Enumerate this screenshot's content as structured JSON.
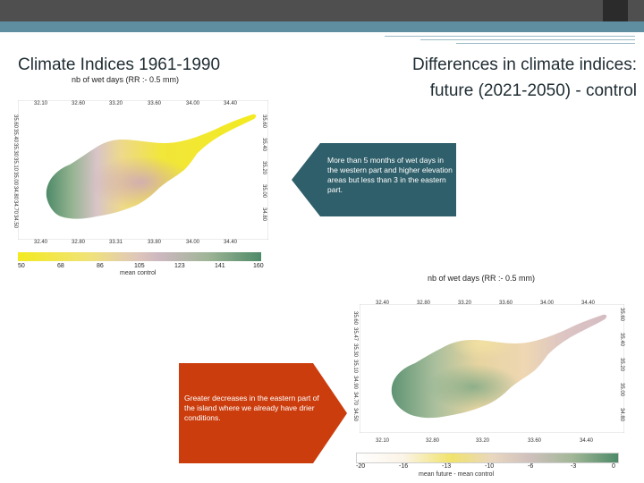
{
  "slide": {
    "title_left": "Climate Indices 1961-1990",
    "title_right_line1": "Differences in climate indices:",
    "title_right_line2": "future (2021-2050) - control"
  },
  "map_control": {
    "title": "nb of wet days (RR :- 0.5 mm)",
    "top_ticks": [
      "32.10",
      "32.60",
      "33.20",
      "33.60",
      "34.00",
      "34.40"
    ],
    "bottom_ticks": [
      "32.40",
      "32.80",
      "33.31",
      "33.80",
      "34.00",
      "34.40"
    ],
    "left_ticks": [
      "34.50",
      "34.70",
      "34.80",
      "35.00",
      "35.10",
      "35.30",
      "35.40",
      "35.60"
    ],
    "right_ticks": [
      "34.80",
      "35.00",
      "35.20",
      "35.40",
      "35.60"
    ],
    "colorbar_labels": [
      "50",
      "68",
      "86",
      "105",
      "123",
      "141",
      "160"
    ],
    "colorbar_caption": "mean control"
  },
  "map_diff": {
    "title": "nb of wet days (RR :- 0.5 mm)",
    "top_ticks": [
      "32.40",
      "32.80",
      "33.20",
      "33.60",
      "34.00",
      "34.40"
    ],
    "bottom_ticks": [
      "32.10",
      "32.80",
      "33.20",
      "33.60",
      "34.40"
    ],
    "left_ticks": [
      "34.50",
      "34.70",
      "34.90",
      "35.10",
      "35.30",
      "35.47",
      "35.60"
    ],
    "right_ticks": [
      "34.80",
      "35.00",
      "35.20",
      "35.40",
      "35.60"
    ],
    "colorbar_labels": [
      "-20",
      "-16",
      "-13",
      "-10",
      "-6",
      "-3",
      "0"
    ],
    "colorbar_caption": "mean future - mean control"
  },
  "callouts": {
    "teal_text": "More than 5 months of wet days in the western part and higher elevation areas but less than 3 in the eastern part.",
    "orange_text": "Greater decreases in the eastern part of the island where we already have drier conditions."
  },
  "colors": {
    "teal_callout": "#2f5f6a",
    "orange_callout": "#cc3d0e",
    "accent_band": "#5f8ea0"
  }
}
